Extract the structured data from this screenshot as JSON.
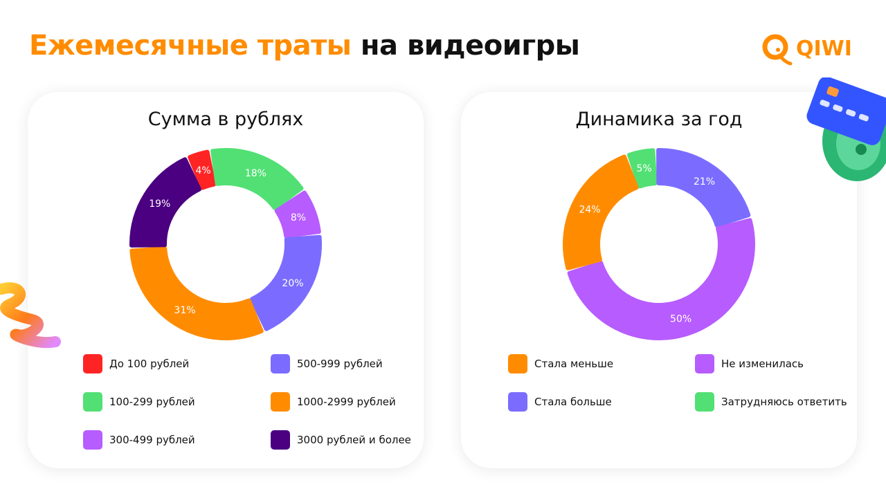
{
  "header": {
    "title_accent": "Ежемесячные траты",
    "title_rest": "на видеоигры",
    "logo_text": "QIWI"
  },
  "colors": {
    "accent": "#ff8c00",
    "red": "#ff2424",
    "green": "#52e074",
    "violet": "#b75cff",
    "periwinkle": "#7b6cff",
    "orange": "#ff8c00",
    "dark_purple": "#4a0080"
  },
  "chart_data": [
    {
      "type": "pie",
      "title": "Сумма в рублях",
      "legend_placement": "bottom",
      "slices": [
        {
          "label": "До 100 рублей",
          "value": 4,
          "value_label": "4%",
          "color": "#ff2424"
        },
        {
          "label": "100-299 рублей",
          "value": 18,
          "value_label": "18%",
          "color": "#52e074"
        },
        {
          "label": "300-499 рублей",
          "value": 8,
          "value_label": "8%",
          "color": "#b75cff"
        },
        {
          "label": "500-999 рублей",
          "value": 20,
          "value_label": "20%",
          "color": "#7b6cff"
        },
        {
          "label": "1000-2999 рублей",
          "value": 31,
          "value_label": "31%",
          "color": "#ff8c00"
        },
        {
          "label": "3000 рублей и более",
          "value": 19,
          "value_label": "19%",
          "color": "#4a0080"
        }
      ],
      "legend": [
        {
          "label": "До 100 рублей",
          "color": "#ff2424"
        },
        {
          "label": "500-999 рублей",
          "color": "#7b6cff"
        },
        {
          "label": "100-299 рублей",
          "color": "#52e074"
        },
        {
          "label": "1000-2999 рублей",
          "color": "#ff8c00"
        },
        {
          "label": "300-499 рублей",
          "color": "#b75cff"
        },
        {
          "label": "3000 рублей и более",
          "color": "#4a0080"
        }
      ]
    },
    {
      "type": "pie",
      "title": "Динамика за год",
      "legend_placement": "bottom",
      "slices": [
        {
          "label": "Затрудняюсь ответить",
          "value": 5,
          "value_label": "5%",
          "color": "#52e074"
        },
        {
          "label": "Стала больше",
          "value": 21,
          "value_label": "21%",
          "color": "#7b6cff"
        },
        {
          "label": "Не изменилась",
          "value": 50,
          "value_label": "50%",
          "color": "#b75cff"
        },
        {
          "label": "Стала меньше",
          "value": 24,
          "value_label": "24%",
          "color": "#ff8c00"
        }
      ],
      "legend": [
        {
          "label": "Стала меньше",
          "color": "#ff8c00"
        },
        {
          "label": "Не изменилась",
          "color": "#b75cff"
        },
        {
          "label": "Стала больше",
          "color": "#7b6cff"
        },
        {
          "label": "Затрудняюсь ответить",
          "color": "#52e074"
        }
      ]
    }
  ]
}
